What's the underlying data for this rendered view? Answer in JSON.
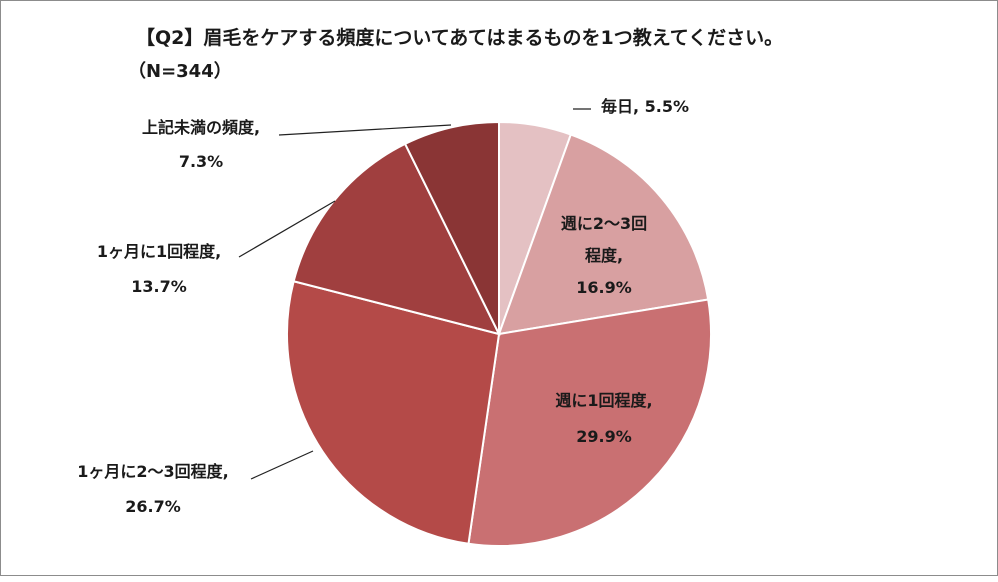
{
  "chart_data": {
    "type": "pie",
    "title": "【Q2】眉毛をケアする頻度についてあてはまるものを1つ教えてください。",
    "subtitle": "（N=344）",
    "slices": [
      {
        "name": "毎日",
        "value": 5.5,
        "pct_label": "5.5%",
        "color": "#e4c1c3"
      },
      {
        "name": "週に2～3回程度",
        "value": 16.9,
        "pct_label": "16.9%",
        "color": "#d8a0a1"
      },
      {
        "name": "週に1回程度",
        "value": 29.9,
        "pct_label": "29.9%",
        "color": "#c97072"
      },
      {
        "name": "1ヶ月に2～3回程度",
        "value": 26.7,
        "pct_label": "26.7%",
        "color": "#b44a48"
      },
      {
        "name": "1ヶ月に1回程度",
        "value": 13.7,
        "pct_label": "13.7%",
        "color": "#a03f3f"
      },
      {
        "name": "上記未満の頻度",
        "value": 7.3,
        "pct_label": "7.3%",
        "color": "#8a3535"
      }
    ]
  }
}
